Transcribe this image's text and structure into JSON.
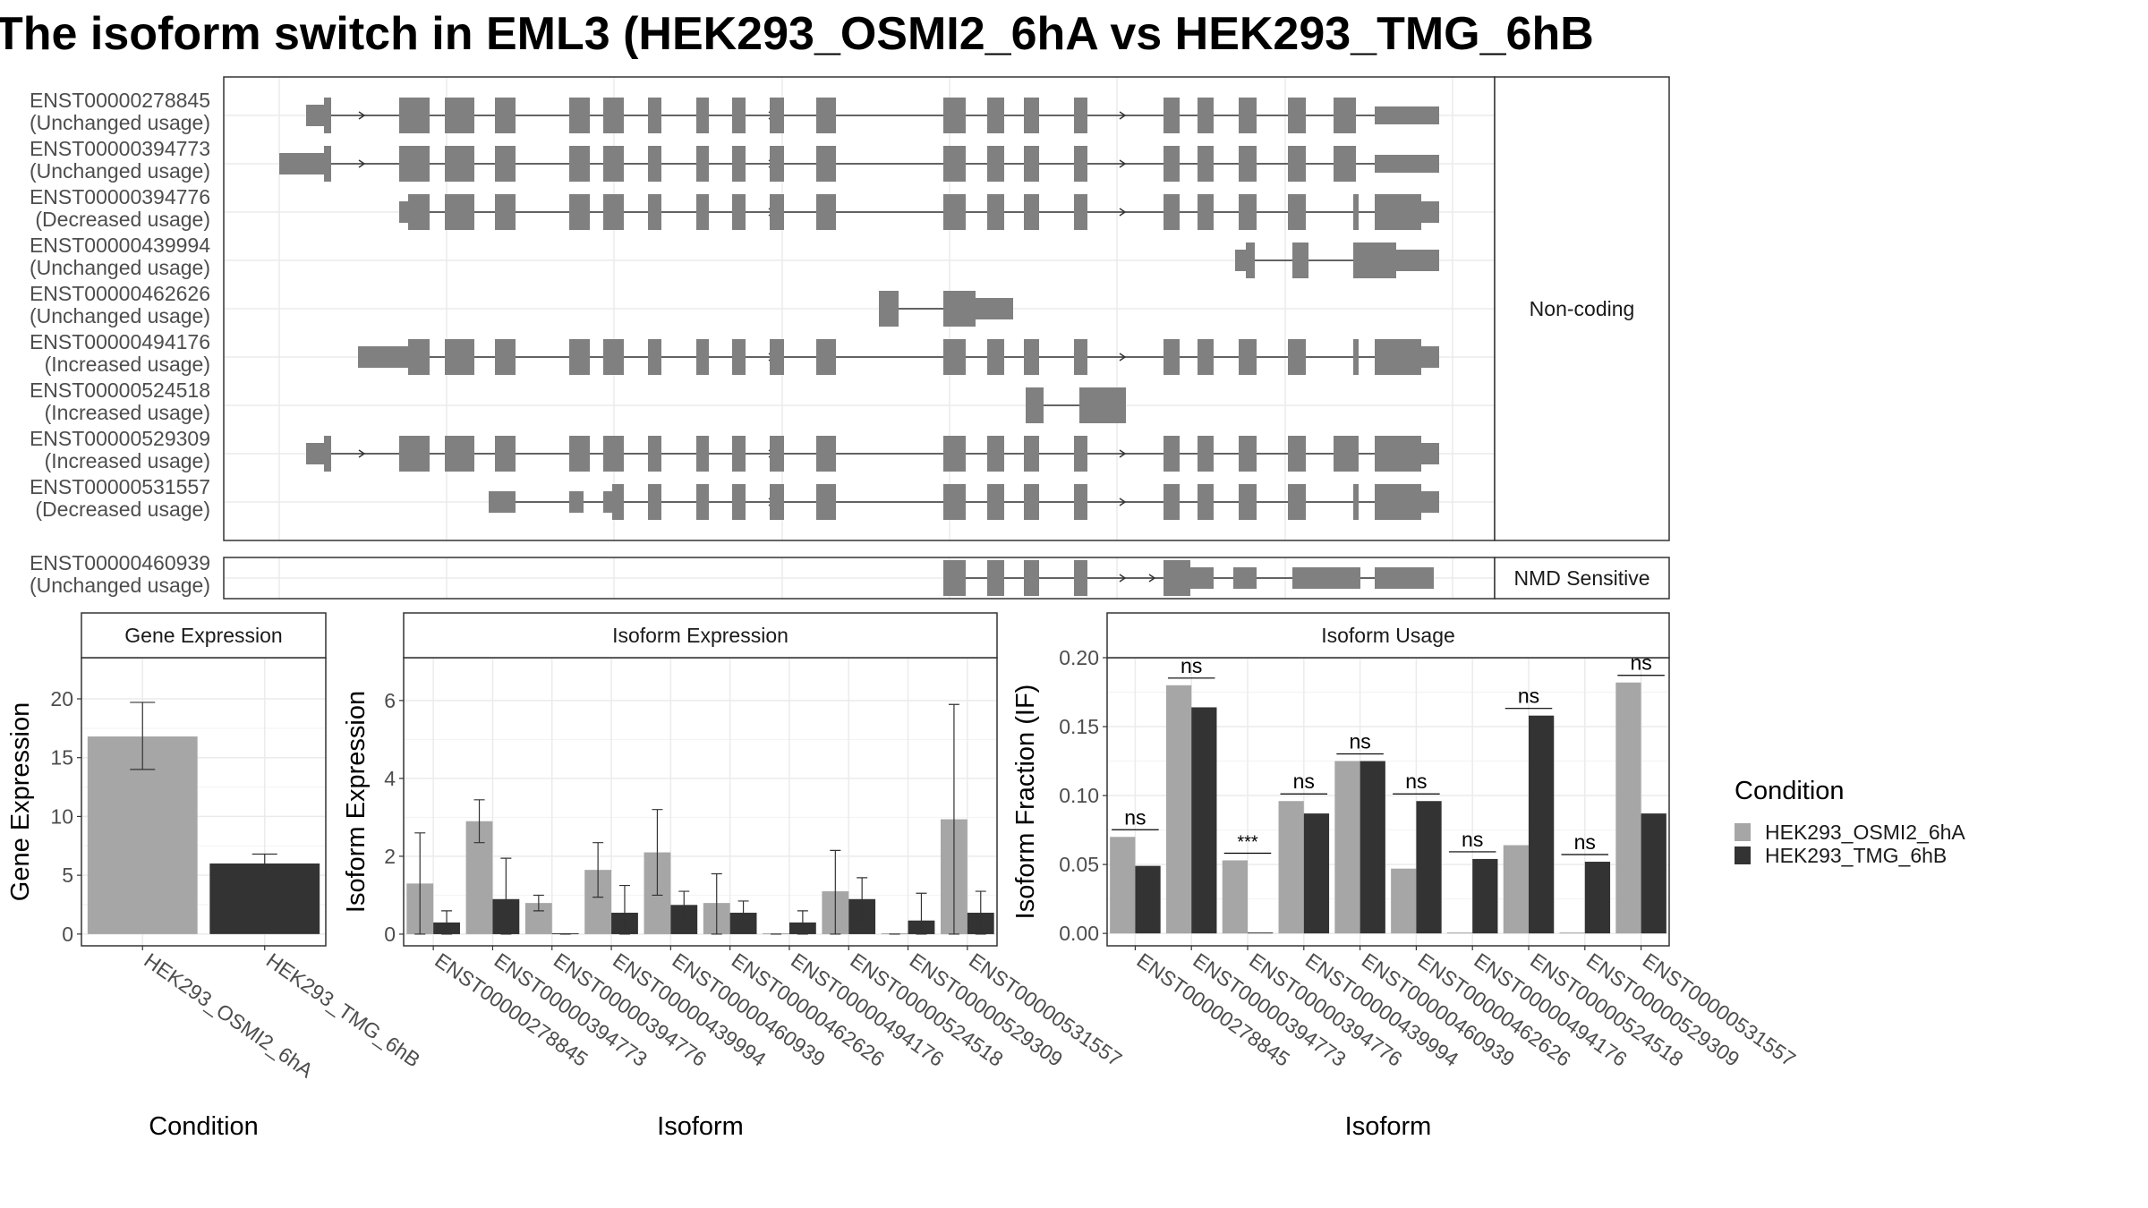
{
  "title": "The isoform switch in EML3 (HEK293_OSMI2_6hA vs HEK293_TMG_6hB",
  "colors": {
    "condition_a": "#a6a6a6",
    "condition_b": "#333333",
    "exon": "#808080",
    "panel_border": "#333333",
    "strip_fill": "#ffffff",
    "grid": "#ebebeb"
  },
  "legend": {
    "title": "Condition",
    "placement": "right",
    "entries": [
      {
        "label": "HEK293_OSMI2_6hA",
        "color": "#a6a6a6"
      },
      {
        "label": "HEK293_TMG_6hB",
        "color": "#333333"
      }
    ]
  },
  "structure": {
    "facets": [
      {
        "strip": "Non-coding",
        "rows": [
          {
            "id": "ENST00000278845",
            "usage": "(Unchanged usage)",
            "arrow": true
          },
          {
            "id": "ENST00000394773",
            "usage": "(Unchanged usage)",
            "arrow": true
          },
          {
            "id": "ENST00000394776",
            "usage": "(Decreased usage)",
            "arrow": true
          },
          {
            "id": "ENST00000439994",
            "usage": "(Unchanged usage)",
            "arrow": false
          },
          {
            "id": "ENST00000462626",
            "usage": "(Unchanged usage)",
            "arrow": false
          },
          {
            "id": "ENST00000494176",
            "usage": "(Increased usage)",
            "arrow": true
          },
          {
            "id": "ENST00000524518",
            "usage": "(Increased usage)",
            "arrow": false
          },
          {
            "id": "ENST00000529309",
            "usage": "(Increased usage)",
            "arrow": true
          },
          {
            "id": "ENST00000531557",
            "usage": "(Decreased usage)",
            "arrow": true
          }
        ]
      },
      {
        "strip": "NMD Sensitive",
        "rows": [
          {
            "id": "ENST00000460939",
            "usage": "(Unchanged usage)",
            "arrow": true
          }
        ]
      }
    ]
  },
  "chart_data": [
    {
      "type": "bar",
      "title": "Gene Expression",
      "xlabel": "Condition",
      "ylabel": "Gene Expression",
      "ylim": [
        -1,
        23.5
      ],
      "yticks": [
        0,
        5,
        10,
        15,
        20
      ],
      "categories": [
        "HEK293_OSMI2_6hA",
        "HEK293_TMG_6hB"
      ],
      "values": [
        16.8,
        6.0
      ],
      "errors": [
        [
          14.0,
          19.7
        ],
        [
          5.2,
          6.8
        ]
      ]
    },
    {
      "type": "bar",
      "title": "Isoform Expression",
      "xlabel": "Isoform",
      "ylabel": "Isoform Expression",
      "ylim": [
        -0.3,
        7.1
      ],
      "yticks": [
        0,
        2,
        4,
        6
      ],
      "categories": [
        "ENST00000278845",
        "ENST00000394773",
        "ENST00000394776",
        "ENST00000439994",
        "ENST00000460939",
        "ENST00000462626",
        "ENST00000494176",
        "ENST00000524518",
        "ENST00000529309",
        "ENST00000531557"
      ],
      "series": [
        {
          "name": "HEK293_OSMI2_6hA",
          "values": [
            1.3,
            2.9,
            0.8,
            1.65,
            2.1,
            0.8,
            0.0,
            1.1,
            0.0,
            2.95
          ],
          "errors": [
            [
              0.0,
              2.6
            ],
            [
              2.35,
              3.45
            ],
            [
              0.6,
              1.0
            ],
            [
              0.95,
              2.35
            ],
            [
              1.0,
              3.2
            ],
            [
              0.0,
              1.55
            ],
            [
              0.0,
              0.0
            ],
            [
              0.0,
              2.15
            ],
            [
              0.0,
              0.0
            ],
            [
              0.0,
              5.9
            ]
          ]
        },
        {
          "name": "HEK293_TMG_6hB",
          "values": [
            0.3,
            0.9,
            0.0,
            0.55,
            0.75,
            0.55,
            0.3,
            0.9,
            0.35,
            0.55
          ],
          "errors": [
            [
              0.0,
              0.6
            ],
            [
              0.0,
              1.95
            ],
            [
              0.0,
              0.0
            ],
            [
              0.0,
              1.25
            ],
            [
              0.4,
              1.1
            ],
            [
              0.25,
              0.85
            ],
            [
              0.0,
              0.6
            ],
            [
              0.35,
              1.45
            ],
            [
              0.0,
              1.05
            ],
            [
              0.0,
              1.1
            ]
          ]
        }
      ]
    },
    {
      "type": "bar",
      "title": "Isoform Usage",
      "xlabel": "Isoform",
      "ylabel": "Isoform Fraction (IF)",
      "ylim": [
        -0.009,
        0.2
      ],
      "yticks": [
        0.0,
        0.05,
        0.1,
        0.15,
        0.2
      ],
      "ytick_labels": [
        "0.00",
        "0.05",
        "0.10",
        "0.15",
        "0.20"
      ],
      "categories": [
        "ENST00000278845",
        "ENST00000394773",
        "ENST00000394776",
        "ENST00000439994",
        "ENST00000460939",
        "ENST00000462626",
        "ENST00000494176",
        "ENST00000524518",
        "ENST00000529309",
        "ENST00000531557"
      ],
      "series": [
        {
          "name": "HEK293_OSMI2_6hA",
          "values": [
            0.07,
            0.18,
            0.053,
            0.096,
            0.125,
            0.047,
            0.0,
            0.064,
            0.0,
            0.182
          ]
        },
        {
          "name": "HEK293_TMG_6hB",
          "values": [
            0.049,
            0.164,
            0.0,
            0.087,
            0.125,
            0.096,
            0.054,
            0.158,
            0.052,
            0.087
          ]
        }
      ],
      "significance": [
        "ns",
        "ns",
        "***",
        "ns",
        "ns",
        "ns",
        "ns",
        "ns",
        "ns",
        "ns"
      ]
    }
  ]
}
